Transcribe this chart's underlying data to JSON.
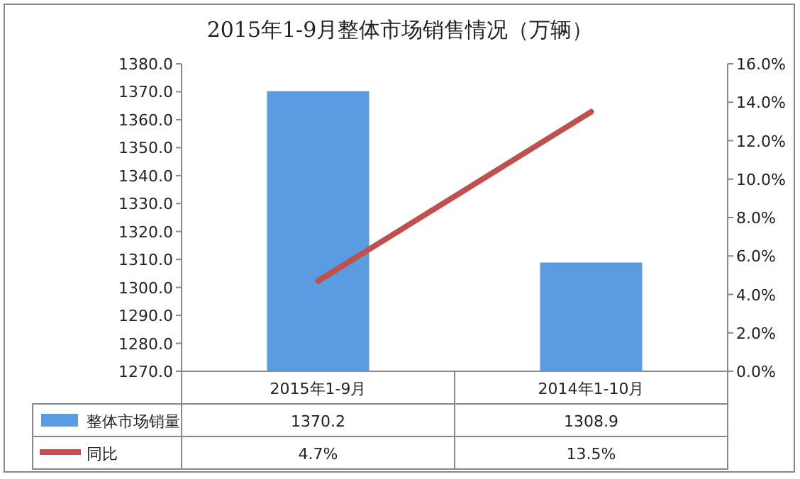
{
  "chart_data": {
    "type": "bar",
    "title": "2015年1-9月整体市场销售情况（万辆）",
    "categories": [
      "2015年1-9月",
      "2014年1-10月"
    ],
    "series": [
      {
        "name": "整体市场销量",
        "color": "#5b9be0",
        "values": [
          1370.2,
          1308.9
        ],
        "value_labels": [
          "1370.2",
          "1308.9"
        ]
      },
      {
        "name": "同比",
        "type": "line",
        "axis": "y2",
        "color": "#c0504d",
        "values": [
          4.7,
          13.5
        ],
        "value_labels": [
          "4.7%",
          "13.5%"
        ]
      }
    ],
    "ylim": [
      1270,
      1380
    ],
    "yticks": [
      {
        "value": 1270,
        "label": "1270.0"
      },
      {
        "value": 1280,
        "label": "1280.0"
      },
      {
        "value": 1290,
        "label": "1290.0"
      },
      {
        "value": 1300,
        "label": "1300.0"
      },
      {
        "value": 1310,
        "label": "1310.0"
      },
      {
        "value": 1320,
        "label": "1320.0"
      },
      {
        "value": 1330,
        "label": "1330.0"
      },
      {
        "value": 1340,
        "label": "1340.0"
      },
      {
        "value": 1350,
        "label": "1350.0"
      },
      {
        "value": 1360,
        "label": "1360.0"
      },
      {
        "value": 1370,
        "label": "1370.0"
      },
      {
        "value": 1380,
        "label": "1380.0"
      }
    ],
    "y2lim": [
      0,
      16
    ],
    "y2ticks": [
      {
        "value": 0,
        "label": "0.0%"
      },
      {
        "value": 2,
        "label": "2.0%"
      },
      {
        "value": 4,
        "label": "4.0%"
      },
      {
        "value": 6,
        "label": "6.0%"
      },
      {
        "value": 8,
        "label": "8.0%"
      },
      {
        "value": 10,
        "label": "10.0%"
      },
      {
        "value": 12,
        "label": "12.0%"
      },
      {
        "value": 14,
        "label": "14.0%"
      },
      {
        "value": 16,
        "label": "16.0%"
      }
    ],
    "legend": "bottom",
    "marker": "none"
  }
}
